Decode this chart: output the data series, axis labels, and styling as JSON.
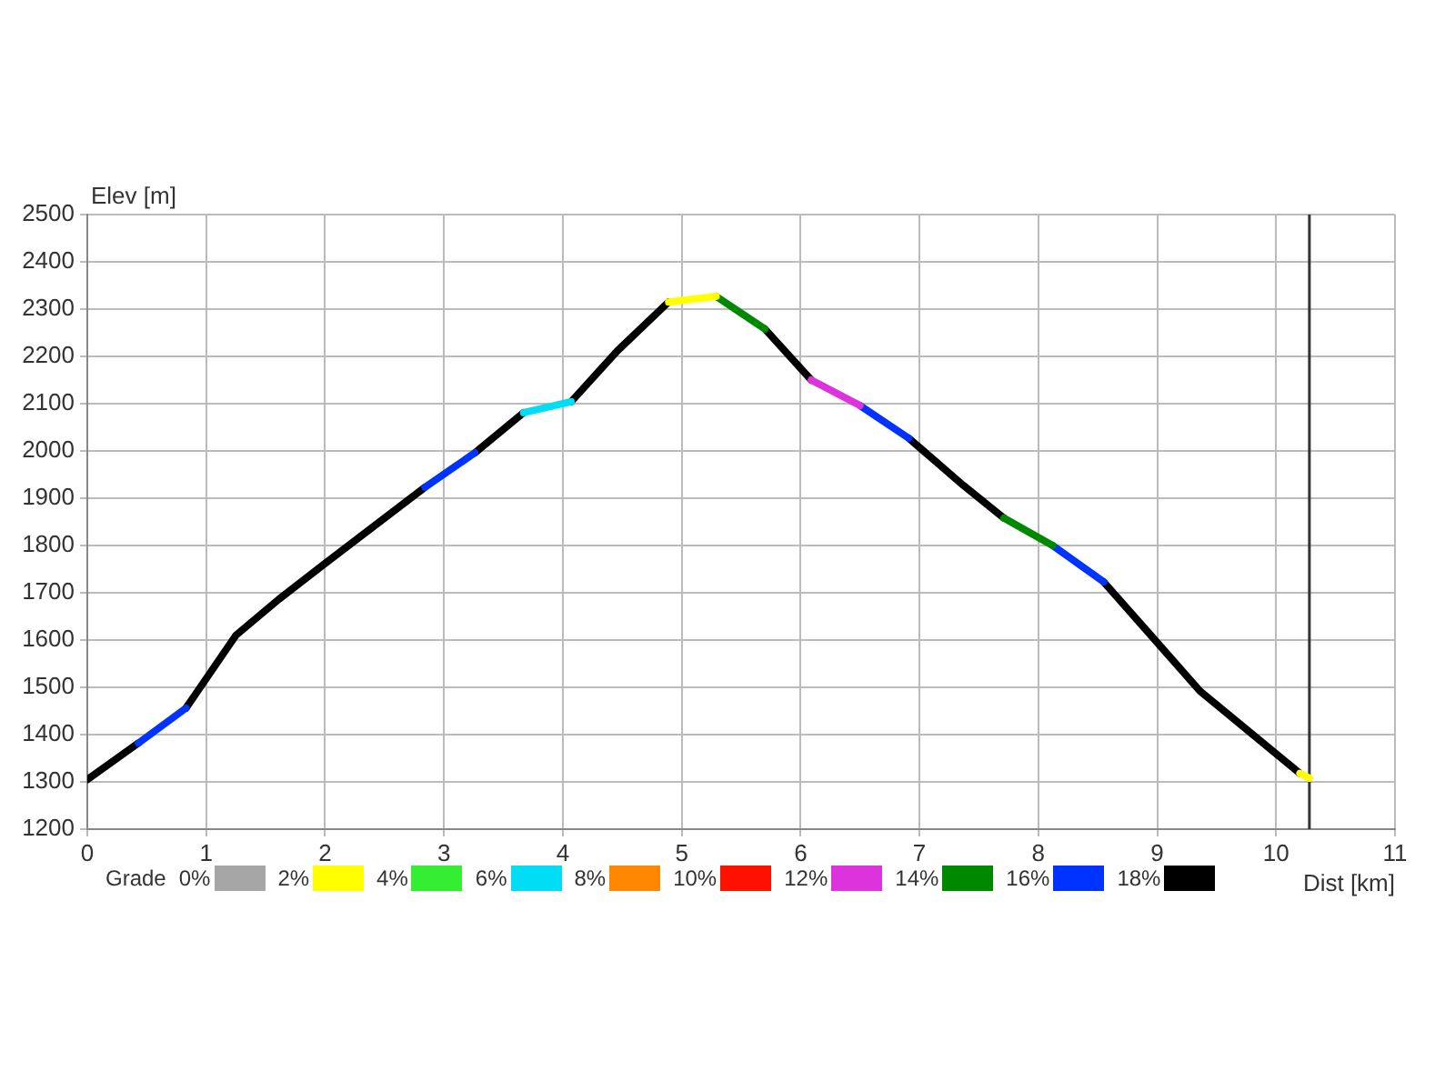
{
  "chart_data": {
    "type": "line",
    "xlabel": "Dist [km]",
    "ylabel": "Elev [m]",
    "legend_title": "Grade",
    "legend": "bottom",
    "grid": true,
    "marker": "none",
    "line_style": "solid",
    "xlim": [
      0,
      11
    ],
    "xticks": [
      0,
      1,
      2,
      3,
      4,
      5,
      6,
      7,
      8,
      9,
      10,
      11
    ],
    "ylim": [
      1200,
      2500
    ],
    "yticks": [
      1200,
      1300,
      1400,
      1500,
      1600,
      1700,
      1800,
      1900,
      2000,
      2100,
      2200,
      2300,
      2400,
      2500
    ],
    "ref_lines": [
      {
        "axis": "x",
        "value": 10.28,
        "color": "#333333"
      }
    ],
    "series": [
      {
        "name": "0%",
        "color": "#a6a6a6"
      },
      {
        "name": "2%",
        "color": "#ffff00",
        "x": [
          4.89,
          5.29,
          7.0,
          10.2,
          10.28
        ],
        "values": [
          2315,
          2327,
          null,
          1318,
          1308
        ]
      },
      {
        "name": "4%",
        "color": "#33ee33"
      },
      {
        "name": "6%",
        "color": "#00ddf5",
        "x": [
          3.67,
          4.07
        ],
        "values": [
          2081,
          2104
        ]
      },
      {
        "name": "8%",
        "color": "#ff8800"
      },
      {
        "name": "10%",
        "color": "#ff1100"
      },
      {
        "name": "12%",
        "color": "#dd33dd",
        "x": [
          6.09,
          6.5
        ],
        "values": [
          2150,
          2096
        ]
      },
      {
        "name": "14%",
        "color": "#008800",
        "x": [
          5.29,
          5.7,
          7.0,
          7.71,
          8.12
        ],
        "values": [
          2327,
          2258,
          null,
          1858,
          1800
        ]
      },
      {
        "name": "16%",
        "color": "#0033ff",
        "x": [
          0.43,
          0.83,
          2.0,
          2.84,
          3.26,
          6.0,
          6.5,
          6.91,
          7.5,
          8.12,
          8.55
        ],
        "values": [
          1382,
          1456,
          null,
          1923,
          1996,
          null,
          2096,
          2027,
          null,
          1800,
          1723
        ]
      },
      {
        "name": "18%",
        "color": "#000000",
        "x": [
          0,
          0.43,
          0.6,
          0.83,
          1.25,
          1.61,
          2.0,
          2.84,
          3.0,
          3.26,
          3.67,
          3.8,
          4.07,
          4.46,
          4.89,
          5.0,
          5.7,
          6.09,
          6.3,
          6.91,
          7.37,
          7.71,
          8.0,
          8.55,
          9.36,
          10.2
        ],
        "values": [
          1305,
          1382,
          null,
          1456,
          1610,
          1686,
          1762,
          1923,
          null,
          1996,
          2081,
          null,
          2104,
          2212,
          2315,
          null,
          2258,
          2150,
          null,
          2027,
          1927,
          1858,
          null,
          1723,
          1492,
          1318
        ]
      }
    ]
  }
}
